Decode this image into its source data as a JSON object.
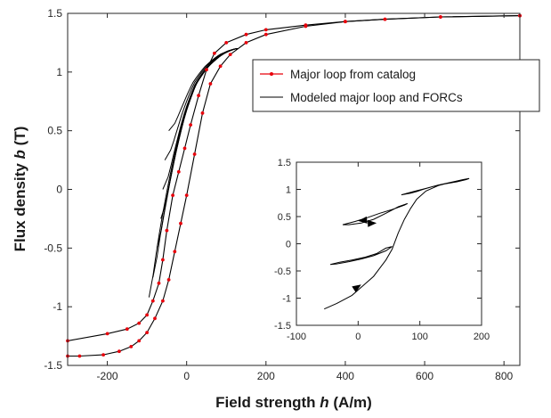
{
  "chart_data": [
    {
      "type": "line",
      "xlabel": {
        "pre": "Field strength ",
        "var": "h",
        "post": " (A/m)"
      },
      "ylabel": {
        "pre": "Flux density ",
        "var": "b",
        "post": " (T)"
      },
      "xlim": [
        -300,
        840
      ],
      "ylim": [
        -1.5,
        1.5
      ],
      "xticks": [
        -200,
        0,
        200,
        400,
        600,
        800
      ],
      "yticks": [
        -1.5,
        -1,
        -0.5,
        0,
        0.5,
        1,
        1.5
      ],
      "xtick_labels": [
        "-200",
        "0",
        "200",
        "400",
        "600",
        "800"
      ],
      "ytick_labels": [
        "-1.5",
        "-1",
        "-0.5",
        "0",
        "0.5",
        "1",
        "1.5"
      ],
      "grid": false,
      "legend_position": "top-right",
      "series": [
        {
          "name": "Major loop from catalog",
          "color": "#e8000b",
          "marker": "dot",
          "branches": [
            {
              "x": [
                840,
                640,
                500,
                400,
                300,
                200,
                150,
                100,
                70,
                50,
                30,
                10,
                -5,
                -20,
                -35,
                -50,
                -60,
                -70,
                -85,
                -100,
                -120,
                -150,
                -200,
                -300
              ],
              "y": [
                1.48,
                1.47,
                1.45,
                1.43,
                1.4,
                1.36,
                1.32,
                1.25,
                1.16,
                1.02,
                0.8,
                0.55,
                0.35,
                0.15,
                -0.05,
                -0.35,
                -0.6,
                -0.8,
                -0.95,
                -1.07,
                -1.14,
                -1.19,
                -1.23,
                -1.29
              ]
            },
            {
              "x": [
                -300,
                -270,
                -210,
                -170,
                -140,
                -120,
                -100,
                -80,
                -60,
                -45,
                -30,
                -15,
                0,
                20,
                40,
                60,
                85,
                110,
                150,
                200,
                300,
                400,
                500,
                640,
                840
              ],
              "y": [
                -1.42,
                -1.42,
                -1.41,
                -1.38,
                -1.34,
                -1.29,
                -1.22,
                -1.1,
                -0.95,
                -0.77,
                -0.53,
                -0.29,
                -0.05,
                0.3,
                0.65,
                0.9,
                1.05,
                1.15,
                1.25,
                1.32,
                1.39,
                1.43,
                1.45,
                1.47,
                1.48
              ]
            }
          ]
        },
        {
          "name": "Modeled major loop and FORCs",
          "color": "#000000",
          "marker": "none",
          "forc_reversal_points": [
            [
              -45,
              0.5
            ],
            [
              -55,
              0.25
            ],
            [
              -60,
              0.0
            ],
            [
              -65,
              -0.25
            ],
            [
              -75,
              -0.5
            ],
            [
              -85,
              -0.75
            ],
            [
              -95,
              -0.92
            ]
          ]
        }
      ]
    },
    {
      "type": "line",
      "inset": true,
      "xlim": [
        -100,
        200
      ],
      "ylim": [
        -1.5,
        1.5
      ],
      "xticks": [
        -100,
        0,
        100,
        200
      ],
      "yticks": [
        -1.5,
        -1,
        -0.5,
        0,
        0.5,
        1,
        1.5
      ],
      "xtick_labels": [
        "-100",
        "0",
        "100",
        "200"
      ],
      "ytick_labels": [
        "-1.5",
        "-1",
        "-0.5",
        "0",
        "0.5",
        "1",
        "1.5"
      ],
      "grid": false,
      "series": [
        {
          "color": "#000000",
          "path": {
            "x": [
              -55,
              -35,
              -10,
              10,
              25,
              35,
              45,
              55,
              65,
              75,
              85,
              95,
              110,
              130,
              150,
              170,
              180,
              175,
              160,
              140,
              120,
              105,
              95,
              85,
              75,
              70,
              90,
              110,
              130,
              150,
              170,
              180
            ],
            "y": [
              -1.2,
              -1.1,
              -0.95,
              -0.75,
              -0.6,
              -0.45,
              -0.3,
              -0.1,
              0.2,
              0.45,
              0.65,
              0.82,
              0.97,
              1.07,
              1.13,
              1.18,
              1.2,
              1.18,
              1.14,
              1.1,
              1.05,
              1.0,
              0.96,
              0.93,
              0.91,
              0.9,
              0.96,
              1.02,
              1.08,
              1.13,
              1.17,
              1.2
            ]
          },
          "minor_loops": [
            {
              "x": [
                -45,
                -30,
                -10,
                10,
                30,
                45,
                55,
                45,
                25,
                5,
                -15,
                -35,
                -45
              ],
              "y": [
                -0.38,
                -0.34,
                -0.3,
                -0.25,
                -0.18,
                -0.08,
                -0.05,
                -0.13,
                -0.22,
                -0.28,
                -0.33,
                -0.37,
                -0.38
              ]
            },
            {
              "x": [
                -25,
                -5,
                15,
                35,
                55,
                75,
                80,
                65,
                45,
                25,
                5,
                -15,
                -25
              ],
              "y": [
                0.35,
                0.41,
                0.48,
                0.56,
                0.63,
                0.71,
                0.74,
                0.68,
                0.56,
                0.45,
                0.38,
                0.35,
                0.35
              ]
            }
          ],
          "arrows": [
            {
              "x": [
                -55,
                5
              ],
              "y": [
                -1.2,
                -0.75
              ]
            },
            {
              "x": [
                35,
                0
              ],
              "y": [
                0.46,
                0.42
              ]
            },
            {
              "x": [
                10,
                30
              ],
              "y": [
                0.37,
                0.38
              ]
            }
          ]
        }
      ]
    }
  ]
}
